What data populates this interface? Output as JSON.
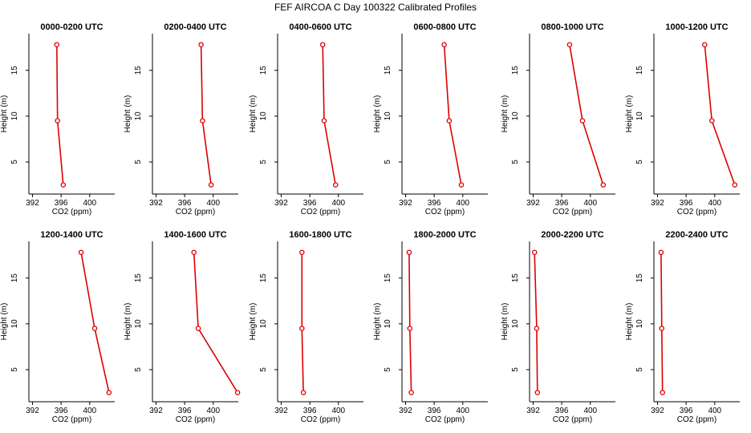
{
  "figure": {
    "title": "FEF AIRCOA C  Day 100322  Calibrated Profiles",
    "series_color": "#dd0000"
  },
  "chart_data": [
    {
      "type": "line",
      "title": "0000-0200 UTC",
      "xlabel": "CO2 (ppm)",
      "ylabel": "Height (m)",
      "xlim": [
        391.5,
        403.5
      ],
      "ylim": [
        1.5,
        19
      ],
      "xticks": [
        392,
        396,
        400
      ],
      "yticks": [
        5,
        10,
        15
      ],
      "x": [
        395.4,
        395.5,
        396.3
      ],
      "y": [
        17.8,
        9.5,
        2.5
      ]
    },
    {
      "type": "line",
      "title": "0200-0400 UTC",
      "xlabel": "CO2 (ppm)",
      "ylabel": "Height (m)",
      "xlim": [
        391.5,
        403.5
      ],
      "ylim": [
        1.5,
        19
      ],
      "xticks": [
        392,
        396,
        400
      ],
      "yticks": [
        5,
        10,
        15
      ],
      "x": [
        398.3,
        398.5,
        399.7
      ],
      "y": [
        17.8,
        9.5,
        2.5
      ]
    },
    {
      "type": "line",
      "title": "0400-0600 UTC",
      "xlabel": "CO2 (ppm)",
      "ylabel": "Height (m)",
      "xlim": [
        391.5,
        403.5
      ],
      "ylim": [
        1.5,
        19
      ],
      "xticks": [
        392,
        396,
        400
      ],
      "yticks": [
        5,
        10,
        15
      ],
      "x": [
        397.8,
        398.0,
        399.6
      ],
      "y": [
        17.8,
        9.5,
        2.5
      ]
    },
    {
      "type": "line",
      "title": "0600-0800 UTC",
      "xlabel": "CO2 (ppm)",
      "ylabel": "Height (m)",
      "xlim": [
        391.5,
        403.5
      ],
      "ylim": [
        1.5,
        19
      ],
      "xticks": [
        392,
        396,
        400
      ],
      "yticks": [
        5,
        10,
        15
      ],
      "x": [
        397.4,
        398.1,
        399.8
      ],
      "y": [
        17.8,
        9.5,
        2.5
      ]
    },
    {
      "type": "line",
      "title": "0800-1000 UTC",
      "xlabel": "CO2 (ppm)",
      "ylabel": "Height (m)",
      "xlim": [
        391.5,
        403.5
      ],
      "ylim": [
        1.5,
        19
      ],
      "xticks": [
        392,
        396,
        400
      ],
      "yticks": [
        5,
        10,
        15
      ],
      "x": [
        397.1,
        398.9,
        401.8
      ],
      "y": [
        17.8,
        9.5,
        2.5
      ]
    },
    {
      "type": "line",
      "title": "1000-1200 UTC",
      "xlabel": "CO2 (ppm)",
      "ylabel": "Height (m)",
      "xlim": [
        391.5,
        403.5
      ],
      "ylim": [
        1.5,
        19
      ],
      "xticks": [
        392,
        396,
        400
      ],
      "yticks": [
        5,
        10,
        15
      ],
      "x": [
        398.6,
        399.6,
        402.8
      ],
      "y": [
        17.8,
        9.5,
        2.5
      ]
    },
    {
      "type": "line",
      "title": "1200-1400 UTC",
      "xlabel": "CO2 (ppm)",
      "ylabel": "Height (m)",
      "xlim": [
        391.5,
        403.5
      ],
      "ylim": [
        1.5,
        19
      ],
      "xticks": [
        392,
        396,
        400
      ],
      "yticks": [
        5,
        10,
        15
      ],
      "x": [
        398.8,
        400.7,
        402.7
      ],
      "y": [
        17.8,
        9.5,
        2.5
      ]
    },
    {
      "type": "line",
      "title": "1400-1600 UTC",
      "xlabel": "CO2 (ppm)",
      "ylabel": "Height (m)",
      "xlim": [
        391.5,
        403.5
      ],
      "ylim": [
        1.5,
        19
      ],
      "xticks": [
        392,
        396,
        400
      ],
      "yticks": [
        5,
        10,
        15
      ],
      "x": [
        397.3,
        397.9,
        403.4
      ],
      "y": [
        17.8,
        9.5,
        2.5
      ]
    },
    {
      "type": "line",
      "title": "1600-1800 UTC",
      "xlabel": "CO2 (ppm)",
      "ylabel": "Height (m)",
      "xlim": [
        391.5,
        403.5
      ],
      "ylim": [
        1.5,
        19
      ],
      "xticks": [
        392,
        396,
        400
      ],
      "yticks": [
        5,
        10,
        15
      ],
      "x": [
        394.9,
        394.9,
        395.1
      ],
      "y": [
        17.8,
        9.5,
        2.5
      ]
    },
    {
      "type": "line",
      "title": "1800-2000 UTC",
      "xlabel": "CO2 (ppm)",
      "ylabel": "Height (m)",
      "xlim": [
        391.5,
        403.5
      ],
      "ylim": [
        1.5,
        19
      ],
      "xticks": [
        392,
        396,
        400
      ],
      "yticks": [
        5,
        10,
        15
      ],
      "x": [
        392.5,
        392.6,
        392.8
      ],
      "y": [
        17.8,
        9.5,
        2.5
      ]
    },
    {
      "type": "line",
      "title": "2000-2200 UTC",
      "xlabel": "CO2 (ppm)",
      "ylabel": "Height (m)",
      "xlim": [
        391.5,
        403.5
      ],
      "ylim": [
        1.5,
        19
      ],
      "xticks": [
        392,
        396,
        400
      ],
      "yticks": [
        5,
        10,
        15
      ],
      "x": [
        392.2,
        392.5,
        392.6
      ],
      "y": [
        17.8,
        9.5,
        2.5
      ]
    },
    {
      "type": "line",
      "title": "2200-2400 UTC",
      "xlabel": "CO2 (ppm)",
      "ylabel": "Height (m)",
      "xlim": [
        391.5,
        403.5
      ],
      "ylim": [
        1.5,
        19
      ],
      "xticks": [
        392,
        396,
        400
      ],
      "yticks": [
        5,
        10,
        15
      ],
      "x": [
        392.5,
        392.6,
        392.7
      ],
      "y": [
        17.8,
        9.5,
        2.5
      ]
    }
  ]
}
